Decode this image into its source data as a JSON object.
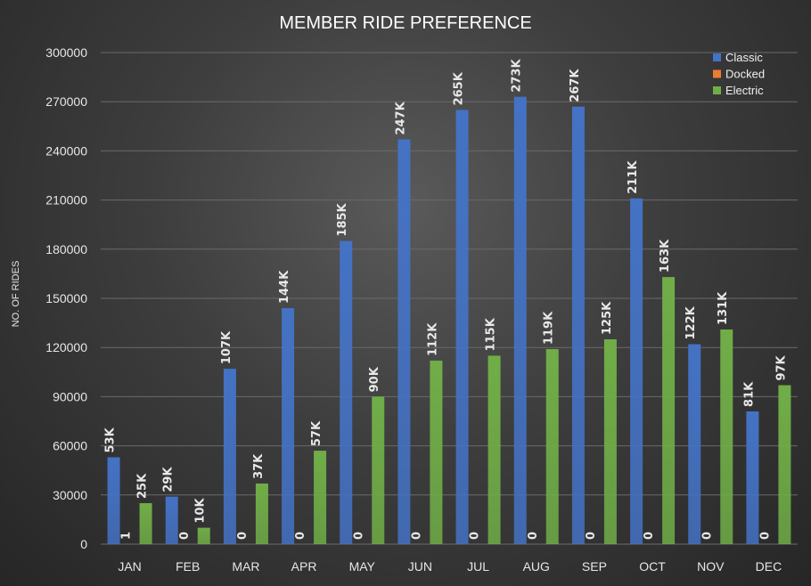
{
  "chart_data": {
    "type": "bar",
    "title": "MEMBER RIDE PREFERENCE",
    "xlabel": "",
    "ylabel": "NO. OF RIDES",
    "ylim": [
      0,
      300000
    ],
    "yticks": [
      "0",
      "30000",
      "60000",
      "90000",
      "120000",
      "150000",
      "180000",
      "210000",
      "240000",
      "270000",
      "300000"
    ],
    "categories": [
      "JAN",
      "FEB",
      "MAR",
      "APR",
      "MAY",
      "JUN",
      "JUL",
      "AUG",
      "SEP",
      "OCT",
      "NOV",
      "DEC"
    ],
    "series": [
      {
        "name": "Classic",
        "color": "#4472c4",
        "values": [
          53000,
          29000,
          107000,
          144000,
          185000,
          247000,
          265000,
          273000,
          267000,
          211000,
          122000,
          81000
        ],
        "labels": [
          "53K",
          "29K",
          "107K",
          "144K",
          "185K",
          "247K",
          "265K",
          "273K",
          "267K",
          "211K",
          "122K",
          "81K"
        ]
      },
      {
        "name": "Docked",
        "color": "#ed7d31",
        "values": [
          1,
          0,
          0,
          0,
          0,
          0,
          0,
          0,
          0,
          0,
          0,
          0
        ],
        "labels": [
          "1",
          "0",
          "0",
          "0",
          "0",
          "0",
          "0",
          "0",
          "0",
          "0",
          "0",
          "0"
        ]
      },
      {
        "name": "Electric",
        "color": "#70ad47",
        "values": [
          25000,
          10000,
          37000,
          57000,
          90000,
          112000,
          115000,
          119000,
          125000,
          163000,
          131000,
          97000
        ],
        "labels": [
          "25K",
          "10K",
          "37K",
          "57K",
          "90K",
          "112K",
          "115K",
          "119K",
          "125K",
          "163K",
          "131K",
          "97K"
        ]
      }
    ],
    "grid": true,
    "legend_position": "top-right"
  }
}
